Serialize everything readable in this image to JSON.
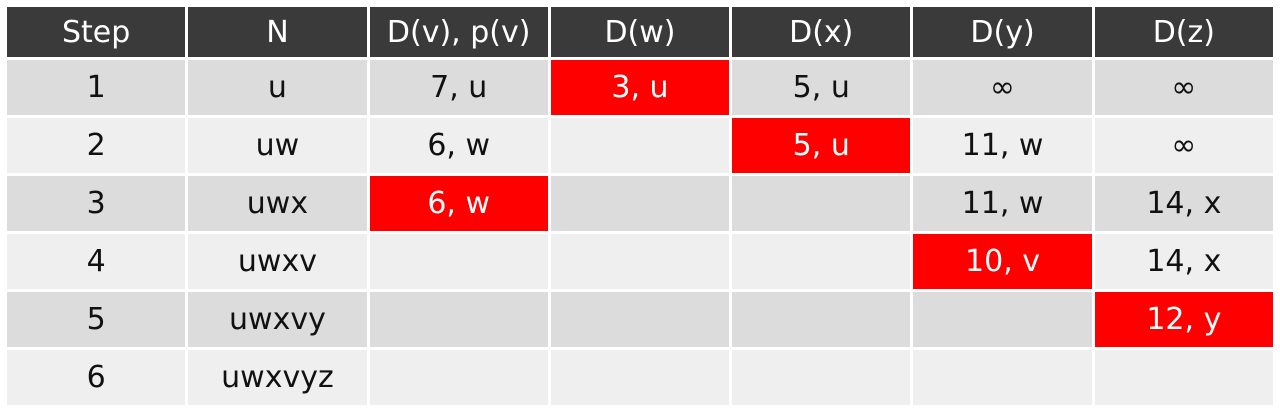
{
  "table": {
    "headers": [
      "Step",
      "N",
      "D(v), p(v)",
      "D(w)",
      "D(x)",
      "D(y)",
      "D(z)"
    ],
    "highlight_color": "#ff0000",
    "rows": [
      {
        "cells": [
          "1",
          "u",
          "7, u",
          "3, u",
          "5, u",
          "∞",
          "∞"
        ],
        "highlight": 3
      },
      {
        "cells": [
          "2",
          "uw",
          "6, w",
          "",
          "5, u",
          "11, w",
          "∞"
        ],
        "highlight": 4
      },
      {
        "cells": [
          "3",
          "uwx",
          "6, w",
          "",
          "",
          "11, w",
          "14, x"
        ],
        "highlight": 2
      },
      {
        "cells": [
          "4",
          "uwxv",
          "",
          "",
          "",
          "10, v",
          "14, x"
        ],
        "highlight": 5
      },
      {
        "cells": [
          "5",
          "uwxvy",
          "",
          "",
          "",
          "",
          "12, y"
        ],
        "highlight": 6
      },
      {
        "cells": [
          "6",
          "uwxvyz",
          "",
          "",
          "",
          "",
          ""
        ],
        "highlight": -1
      }
    ]
  }
}
